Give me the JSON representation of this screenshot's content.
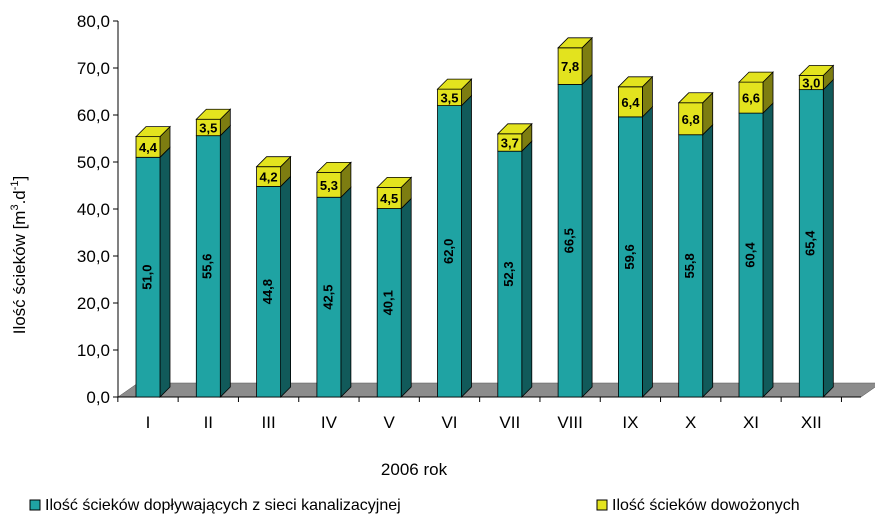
{
  "chart_data": {
    "type": "bar",
    "stacked": true,
    "three_d": true,
    "categories": [
      "I",
      "II",
      "III",
      "IV",
      "V",
      "VI",
      "VII",
      "VIII",
      "IX",
      "X",
      "XI",
      "XII"
    ],
    "series": [
      {
        "name": "Ilość ścieków dopływających z sieci kanalizacyjnej",
        "values": [
          51.0,
          55.6,
          44.8,
          42.5,
          40.1,
          62.0,
          52.3,
          66.5,
          59.6,
          55.8,
          60.4,
          65.4
        ],
        "labels": [
          "51,0",
          "55,6",
          "44,8",
          "42,5",
          "40,1",
          "62,0",
          "52,3",
          "66,5",
          "59,6",
          "55,8",
          "60,4",
          "65,4"
        ],
        "color": "#1fa3a3"
      },
      {
        "name": "Ilość ścieków dowożonych",
        "values": [
          4.4,
          3.5,
          4.2,
          5.3,
          4.5,
          3.5,
          3.7,
          7.8,
          6.4,
          6.8,
          6.6,
          3.0
        ],
        "labels": [
          "4,4",
          "3,5",
          "4,2",
          "5,3",
          "4,5",
          "3,5",
          "3,7",
          "7,8",
          "6,4",
          "6,8",
          "6,6",
          "3,0"
        ],
        "color": "#e3e31e"
      }
    ],
    "ylim": [
      0,
      80
    ],
    "yticks": [
      "0,0",
      "10,0",
      "20,0",
      "30,0",
      "40,0",
      "50,0",
      "60,0",
      "70,0",
      "80,0"
    ],
    "xlabel": "2006 rok",
    "ylabel_main": "Ilość ścieków [m",
    "ylabel_sup1": "3",
    "ylabel_mid": ".d",
    "ylabel_sup2": "-1",
    "ylabel_end": "]",
    "legend_position": "bottom",
    "grid": false,
    "floor_color": "#8c8c8c"
  }
}
